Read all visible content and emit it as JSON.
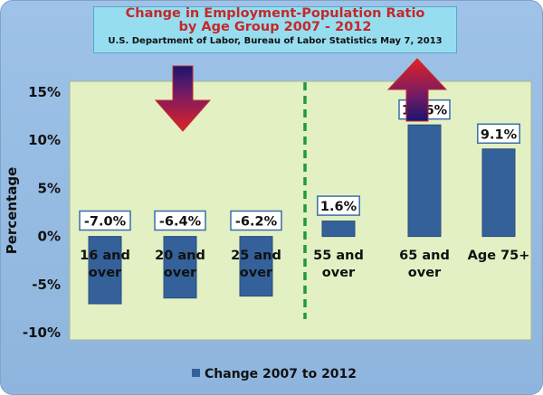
{
  "chart_data": {
    "type": "bar",
    "title_lines": [
      "Change in Employment-Population Ratio",
      "by Age Group 2007 - 2012"
    ],
    "subtitle": "U.S. Department of Labor, Bureau of Labor Statistics May 7, 2013",
    "ylabel": "Percentage",
    "xlabel": "",
    "ylim": [
      -10,
      15
    ],
    "yticks": [
      -10,
      -5,
      0,
      5,
      10,
      15
    ],
    "ytick_labels": [
      "-10%",
      "-5%",
      "0%",
      "5%",
      "10%",
      "15%"
    ],
    "categories": [
      [
        "16 and",
        "over"
      ],
      [
        "20 and",
        "over"
      ],
      [
        "25 and",
        "over"
      ],
      [
        "55 and",
        "over"
      ],
      [
        "65 and",
        "over"
      ],
      [
        "Age 75+"
      ]
    ],
    "series": [
      {
        "name": "Change 2007 to 2012",
        "values": [
          -7.0,
          -6.4,
          -6.2,
          1.6,
          11.6,
          9.1
        ]
      }
    ],
    "data_labels": [
      "-7.0%",
      "-6.4%",
      "-6.2%",
      "1.6%",
      "11.6%",
      "9.1%"
    ],
    "legend": {
      "position": "bottom",
      "label": "Change 2007 to 2012"
    },
    "grid": false,
    "colors": {
      "outer_background": "#8fb6de",
      "plot_area": "#e3f0c3",
      "bar": "#34619a",
      "divider": "#1e9a3c",
      "title_box": "#97ddf0",
      "title_text": "#c62828",
      "label_border": "#3a6ea8"
    },
    "annotations": [
      {
        "type": "down-arrow",
        "meaning": "decline for younger age groups"
      },
      {
        "type": "up-arrow",
        "meaning": "increase for older age groups"
      },
      {
        "type": "dashed-divider",
        "meaning": "separates under-55 groups from 55+ groups"
      }
    ]
  }
}
